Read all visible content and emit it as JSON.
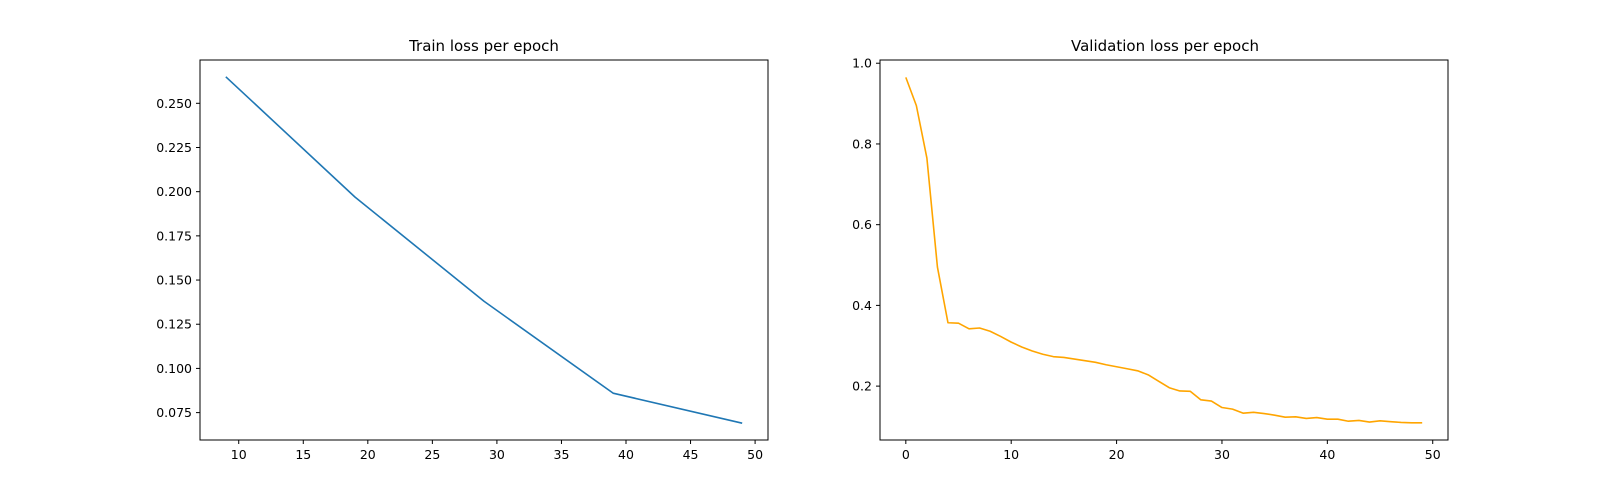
{
  "chart_data": [
    {
      "type": "line",
      "title": "Train loss per epoch",
      "xlabel": "",
      "ylabel": "",
      "xlim": [
        7,
        51
      ],
      "ylim": [
        0.0595,
        0.2745
      ],
      "xticks": [
        10,
        15,
        20,
        25,
        30,
        35,
        40,
        45,
        50
      ],
      "yticks": [
        0.075,
        0.1,
        0.125,
        0.15,
        0.175,
        0.2,
        0.225,
        0.25
      ],
      "ytick_labels": [
        "0.075",
        "0.100",
        "0.125",
        "0.150",
        "0.175",
        "0.200",
        "0.225",
        "0.250"
      ],
      "grid": false,
      "series": [
        {
          "color": "#1f77b4",
          "x": [
            9,
            19,
            29,
            39,
            49
          ],
          "y": [
            0.265,
            0.197,
            0.138,
            0.086,
            0.069
          ]
        }
      ]
    },
    {
      "type": "line",
      "title": "Validation loss per epoch",
      "xlabel": "",
      "ylabel": "",
      "xlim": [
        -2.45,
        51.45
      ],
      "ylim": [
        0.0665,
        1.008
      ],
      "xticks": [
        0,
        10,
        20,
        30,
        40,
        50
      ],
      "yticks": [
        0.2,
        0.4,
        0.6,
        0.8,
        1.0
      ],
      "ytick_labels": [
        "0.2",
        "0.4",
        "0.6",
        "0.8",
        "1.0"
      ],
      "grid": false,
      "series": [
        {
          "color": "#ffa500",
          "x": [
            0,
            1,
            2,
            3,
            4,
            5,
            6,
            7,
            8,
            9,
            10,
            11,
            12,
            13,
            14,
            15,
            16,
            17,
            18,
            19,
            20,
            21,
            22,
            23,
            24,
            25,
            26,
            27,
            28,
            29,
            30,
            31,
            32,
            33,
            34,
            35,
            36,
            37,
            38,
            39,
            40,
            41,
            42,
            43,
            44,
            45,
            46,
            47,
            48,
            49
          ],
          "y": [
            0.965,
            0.895,
            0.765,
            0.495,
            0.357,
            0.356,
            0.342,
            0.344,
            0.336,
            0.323,
            0.309,
            0.297,
            0.287,
            0.279,
            0.273,
            0.271,
            0.267,
            0.263,
            0.259,
            0.253,
            0.248,
            0.243,
            0.238,
            0.228,
            0.212,
            0.196,
            0.188,
            0.187,
            0.166,
            0.163,
            0.147,
            0.143,
            0.133,
            0.135,
            0.132,
            0.128,
            0.123,
            0.124,
            0.12,
            0.122,
            0.118,
            0.118,
            0.113,
            0.115,
            0.111,
            0.114,
            0.112,
            0.11,
            0.109,
            0.109
          ]
        }
      ]
    }
  ]
}
